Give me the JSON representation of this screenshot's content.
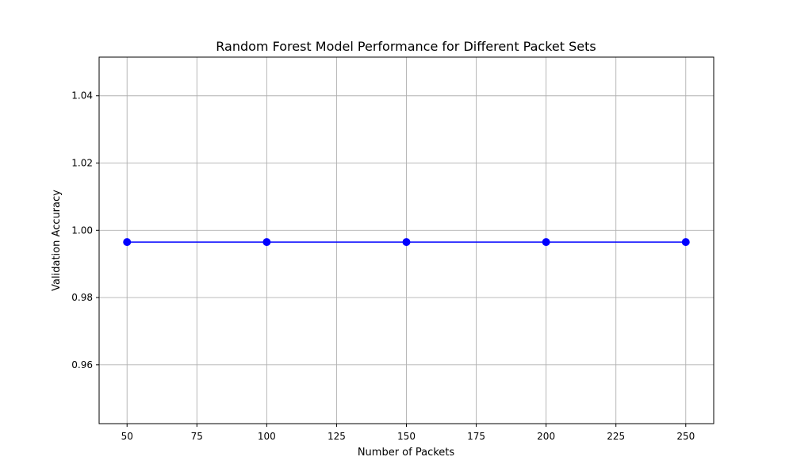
{
  "chart_data": {
    "type": "line",
    "title": "Random Forest Model Performance for Different Packet Sets",
    "xlabel": "Number of Packets",
    "ylabel": "Validation Accuracy",
    "x": [
      50,
      100,
      150,
      200,
      250
    ],
    "series": [
      {
        "values": [
          0.9965,
          0.9965,
          0.9965,
          0.9965,
          0.9965
        ],
        "color": "#0000ff",
        "marker": "circle"
      }
    ],
    "xlim": [
      40,
      260
    ],
    "ylim": [
      0.9425,
      1.0515
    ],
    "x_ticks": [
      50,
      75,
      100,
      125,
      150,
      175,
      200,
      225,
      250
    ],
    "y_ticks": [
      0.96,
      0.98,
      1.0,
      1.02,
      1.04
    ],
    "x_tick_labels": [
      "50",
      "75",
      "100",
      "125",
      "150",
      "175",
      "200",
      "225",
      "250"
    ],
    "y_tick_labels": [
      "0.96",
      "0.98",
      "1.00",
      "1.02",
      "1.04"
    ],
    "grid": true,
    "legend": "none"
  },
  "colors": {
    "line": "#0000ff",
    "grid": "#b0b0b0",
    "axis": "#000000",
    "background": "#ffffff"
  }
}
